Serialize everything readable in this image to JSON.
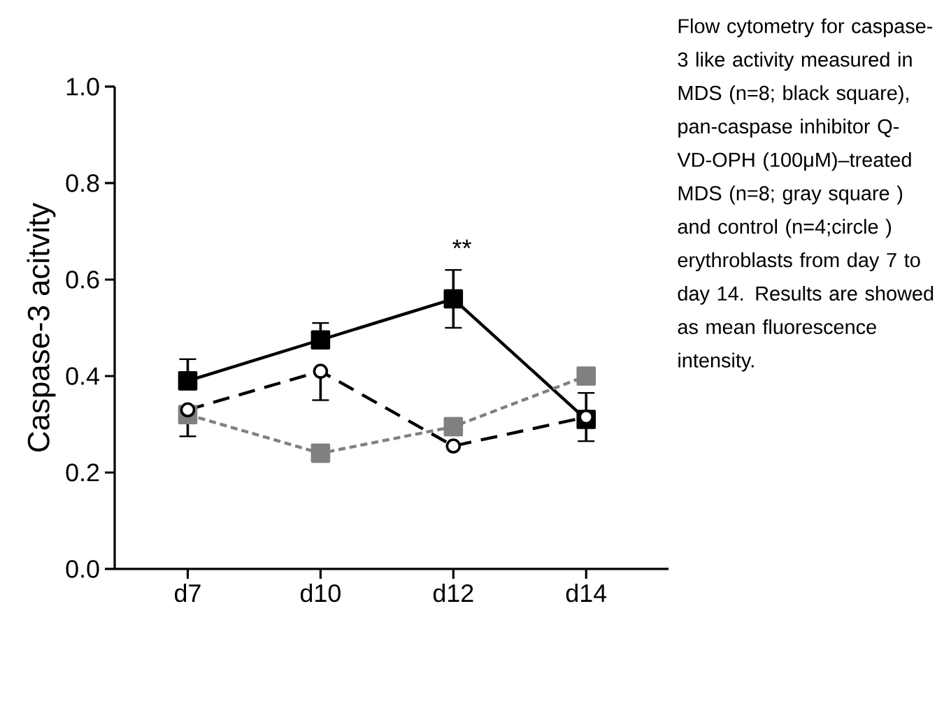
{
  "chart_data": {
    "type": "line",
    "ylabel": "Caspase-3 acitvity",
    "categories": [
      "d7",
      "d10",
      "d12",
      "d14"
    ],
    "series": [
      {
        "color": "#000000",
        "marker": "square",
        "line_style": "solid",
        "values": [
          0.39,
          0.475,
          0.56,
          0.31
        ],
        "errors": [
          [
            0.39,
            0.435
          ],
          [
            0.475,
            0.51
          ],
          0.06,
          null
        ]
      },
      {
        "color": "#808080",
        "marker": "square",
        "line_style": "dotted",
        "values": [
          0.32,
          0.24,
          0.295,
          0.4
        ]
      },
      {
        "color": "#000000",
        "marker": "circle",
        "line_style": "dashed",
        "values": [
          0.33,
          0.41,
          0.255,
          0.315
        ],
        "errors": [
          [
            0.275,
            0.33
          ],
          [
            0.35,
            0.41
          ],
          null,
          0.05
        ]
      }
    ],
    "ylim": [
      0,
      1.0
    ],
    "yticks": [
      {
        "value": 0,
        "label": "0.0"
      },
      0.2,
      0.4,
      0.6,
      0.8,
      {
        "value": 1.0,
        "label": "1.0"
      }
    ],
    "annotations": [
      "**",
      "Flow cytometry for caspase-3 like activity measured in MDS (n=8; black square), pan-caspase inhibitor Q-VD-OPH (100μM)–treated MDS (n=8; gray square ) and control (n=4;circle ) erythroblasts from day 7 to day 14. Results are showed as mean fluorescence intensity."
    ]
  }
}
